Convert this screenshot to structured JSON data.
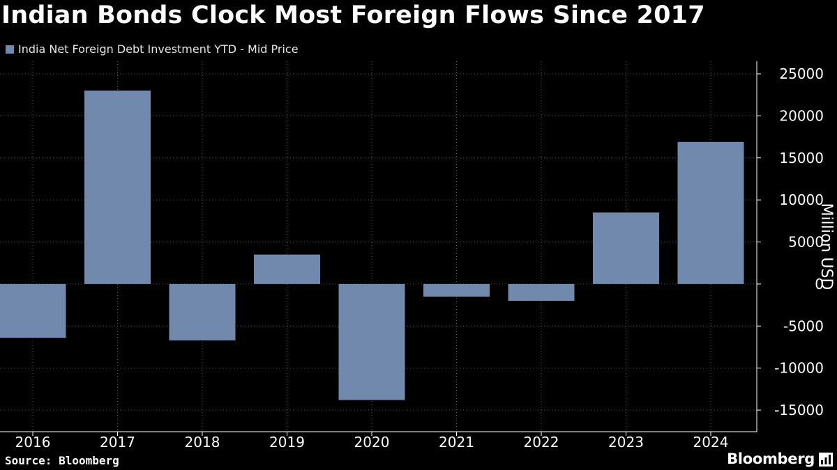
{
  "chart_data": {
    "type": "bar",
    "title": "Indian Bonds Clock Most Foreign Flows Since 2017",
    "series": [
      {
        "name": "India Net Foreign Debt Investment YTD - Mid Price",
        "values": [
          -6400,
          23000,
          -6700,
          3500,
          -13800,
          -1500,
          -2000,
          8500,
          16900
        ]
      }
    ],
    "categories": [
      "2016",
      "2017",
      "2018",
      "2019",
      "2020",
      "2021",
      "2022",
      "2023",
      "2024"
    ],
    "ylabel": "Million USD",
    "ylim": [
      -16500,
      26500
    ],
    "yticks": [
      25000,
      20000,
      15000,
      10000,
      5000,
      0,
      -5000,
      -10000,
      -15000
    ],
    "ytick_labels": [
      "25000",
      "20000",
      "15000",
      "10000",
      "5000",
      "0",
      "-5000",
      "-10000",
      "-15000"
    ],
    "grid": true,
    "legend_position": "top-left",
    "y_axis_position": "right"
  },
  "colors": {
    "background": "#000000",
    "bar": "#7189ad",
    "grid": "#5a5a5a",
    "axis": "#ffffff",
    "text": "#ffffff"
  },
  "footer": {
    "source": "Source: Bloomberg",
    "brand": "Bloomberg"
  }
}
